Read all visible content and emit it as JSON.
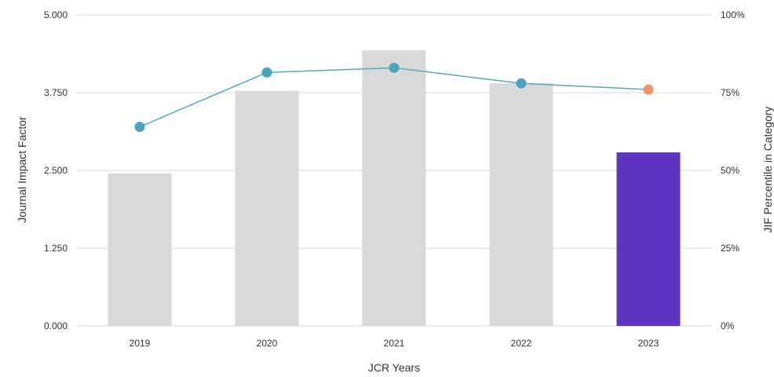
{
  "chart_data": {
    "type": "bar",
    "categories": [
      "2019",
      "2020",
      "2021",
      "2022",
      "2023"
    ],
    "series": [
      {
        "type": "bar",
        "axis": "left",
        "values": [
          2.45,
          3.78,
          4.43,
          3.9,
          2.79
        ],
        "colors": [
          "#d9d9d9",
          "#d9d9d9",
          "#d9d9d9",
          "#d9d9d9",
          "#5e35c0"
        ]
      },
      {
        "type": "line",
        "axis": "right",
        "values": [
          64,
          81.5,
          83,
          78,
          76
        ],
        "line_color": "#55a8bd",
        "point_colors": [
          "#4ba3bd",
          "#4ba3bd",
          "#4ba3bd",
          "#4ba3bd",
          "#f0946b"
        ]
      }
    ],
    "xlabel": "JCR Years",
    "ylabel": "Journal Impact Factor",
    "y2label": "JIF Percentile in Category",
    "ylim": [
      0,
      5
    ],
    "y2lim": [
      0,
      100
    ],
    "yticks": [
      "0.000",
      "1.250",
      "2.500",
      "3.750",
      "5.000"
    ],
    "y2ticks": [
      "0%",
      "25%",
      "50%",
      "75%",
      "100%"
    ],
    "grid": true,
    "legend": "none"
  }
}
